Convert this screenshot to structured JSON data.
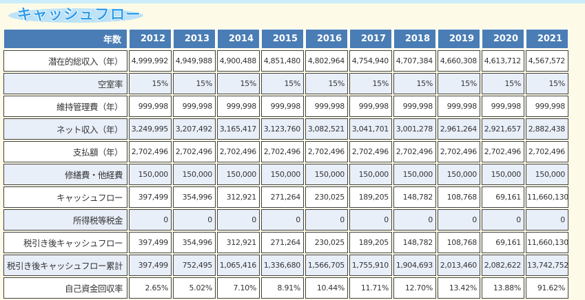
{
  "page": {
    "title": "キャッシュフロー"
  },
  "table": {
    "header": {
      "label": "年数",
      "years": [
        "2012",
        "2013",
        "2014",
        "2015",
        "2016",
        "2017",
        "2018",
        "2019",
        "2020",
        "2021"
      ]
    },
    "rows": [
      {
        "label": "潜在的総収入（年）",
        "values": [
          "4,999,992",
          "4,949,988",
          "4,900,488",
          "4,851,480",
          "4,802,964",
          "4,754,940",
          "4,707,384",
          "4,660,308",
          "4,613,712",
          "4,567,572"
        ]
      },
      {
        "label": "空室率",
        "values": [
          "15%",
          "15%",
          "15%",
          "15%",
          "15%",
          "15%",
          "15%",
          "15%",
          "15%",
          "15%"
        ]
      },
      {
        "label": "維持管理費（年）",
        "values": [
          "999,998",
          "999,998",
          "999,998",
          "999,998",
          "999,998",
          "999,998",
          "999,998",
          "999,998",
          "999,998",
          "999,998"
        ]
      },
      {
        "label": "ネット収入（年）",
        "values": [
          "3,249,995",
          "3,207,492",
          "3,165,417",
          "3,123,760",
          "3,082,521",
          "3,041,701",
          "3,001,278",
          "2,961,264",
          "2,921,657",
          "2,882,438"
        ]
      },
      {
        "label": "支払額（年）",
        "values": [
          "2,702,496",
          "2,702,496",
          "2,702,496",
          "2,702,496",
          "2,702,496",
          "2,702,496",
          "2,702,496",
          "2,702,496",
          "2,702,496",
          "2,702,496"
        ]
      },
      {
        "label": "修繕費・他経費",
        "values": [
          "150,000",
          "150,000",
          "150,000",
          "150,000",
          "150,000",
          "150,000",
          "150,000",
          "150,000",
          "150,000",
          "150,000"
        ]
      },
      {
        "label": "キャッシュフロー",
        "values": [
          "397,499",
          "354,996",
          "312,921",
          "271,264",
          "230,025",
          "189,205",
          "148,782",
          "108,768",
          "69,161",
          "11,660,130"
        ]
      },
      {
        "label": "所得税等税金",
        "values": [
          "0",
          "0",
          "0",
          "0",
          "0",
          "0",
          "0",
          "0",
          "0",
          "0"
        ]
      },
      {
        "label": "税引き後キャッシュフロー",
        "values": [
          "397,499",
          "354,996",
          "312,921",
          "271,264",
          "230,025",
          "189,205",
          "148,782",
          "108,768",
          "69,161",
          "11,660,130"
        ]
      },
      {
        "label": "税引き後キャッシュフロー累計",
        "values": [
          "397,499",
          "752,495",
          "1,065,416",
          "1,336,680",
          "1,566,705",
          "1,755,910",
          "1,904,693",
          "2,013,460",
          "2,082,622",
          "13,742,752"
        ]
      },
      {
        "label": "自己資金回収率",
        "values": [
          "2.65%",
          "5.02%",
          "7.10%",
          "8.91%",
          "10.44%",
          "11.71%",
          "12.70%",
          "13.42%",
          "13.88%",
          "91.62%"
        ]
      }
    ]
  },
  "colors": {
    "page_bg": "#FDFBE7",
    "top_strip": "#CBEEFA",
    "header_bg": "#4A7DB5",
    "alt_row": "#E9EFF9",
    "cell_border": "#3F3F3F",
    "title_blue": "#2E9BE8",
    "title_ellipse": "#BEE3F7"
  }
}
